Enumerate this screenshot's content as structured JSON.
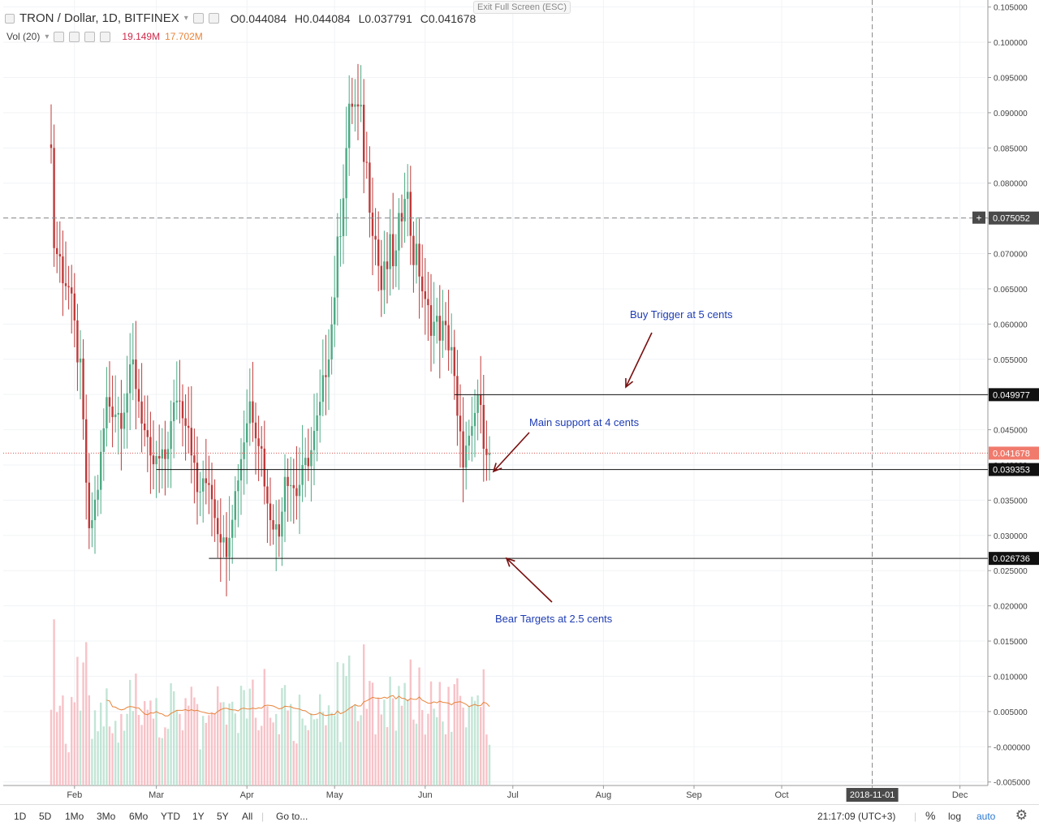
{
  "legend": {
    "symbol": "TRON / Dollar, 1D, BITFINEX",
    "ohlc": [
      {
        "label": "O",
        "value": "0.044084"
      },
      {
        "label": "H",
        "value": "0.044084"
      },
      {
        "label": "L",
        "value": "0.037791"
      },
      {
        "label": "C",
        "value": "0.041678"
      }
    ],
    "volume_label": "Vol (20)",
    "volume_value": "19.149M",
    "volume_ma": "17.702M"
  },
  "exit_fullscreen": "Exit Full Screen (ESC)",
  "toolbar": {
    "ranges": [
      "1D",
      "5D",
      "1Mo",
      "3Mo",
      "6Mo",
      "YTD",
      "1Y",
      "5Y",
      "All"
    ],
    "goto": "Go to...",
    "clock": "21:17:09 (UTC+3)",
    "percent": "%",
    "log": "log",
    "auto": "auto"
  },
  "colors": {
    "up": "#4daa84",
    "down": "#bf3a3a",
    "vol_up": "#b7e0cf",
    "vol_down": "#f6b8be",
    "vol_ma": "#e8843b",
    "annotation_text": "#1e3cb4",
    "arrow": "#7a1010",
    "price_line": "#d9534f"
  },
  "chart_data": {
    "type": "candlestick",
    "title": "TRON / Dollar, 1D, BITFINEX",
    "y_ticks": [
      "0.105000",
      "0.100000",
      "0.095000",
      "0.090000",
      "0.085000",
      "0.080000",
      "0.075000",
      "0.070000",
      "0.065000",
      "0.060000",
      "0.055000",
      "0.050000",
      "0.045000",
      "0.040000",
      "0.035000",
      "0.030000",
      "0.025000",
      "0.020000",
      "0.015000",
      "0.010000",
      "0.005000",
      "-0.000000",
      "-0.005000"
    ],
    "x_ticks": [
      "Feb",
      "Mar",
      "Apr",
      "May",
      "Jun",
      "Jul",
      "Aug",
      "Sep",
      "Oct",
      "2018-11-01",
      "Dec"
    ],
    "ylim": [
      -0.0055,
      0.106
    ],
    "start_date": "2018-01-24",
    "end_date": "2018-06-23",
    "anchors": [
      {
        "date": "2018-01-24",
        "price": 0.085
      },
      {
        "date": "2018-01-25",
        "price": 0.0715
      },
      {
        "date": "2018-01-30",
        "price": 0.065
      },
      {
        "date": "2018-02-03",
        "price": 0.053
      },
      {
        "date": "2018-02-06",
        "price": 0.03
      },
      {
        "date": "2018-02-09",
        "price": 0.037
      },
      {
        "date": "2018-02-12",
        "price": 0.049
      },
      {
        "date": "2018-02-17",
        "price": 0.047
      },
      {
        "date": "2018-02-21",
        "price": 0.054
      },
      {
        "date": "2018-02-27",
        "price": 0.04
      },
      {
        "date": "2018-03-04",
        "price": 0.041
      },
      {
        "date": "2018-03-08",
        "price": 0.05
      },
      {
        "date": "2018-03-12",
        "price": 0.046
      },
      {
        "date": "2018-03-15",
        "price": 0.036
      },
      {
        "date": "2018-03-19",
        "price": 0.038
      },
      {
        "date": "2018-03-22",
        "price": 0.031
      },
      {
        "date": "2018-03-25",
        "price": 0.028
      },
      {
        "date": "2018-03-28",
        "price": 0.036
      },
      {
        "date": "2018-04-02",
        "price": 0.049
      },
      {
        "date": "2018-04-06",
        "price": 0.042
      },
      {
        "date": "2018-04-08",
        "price": 0.034
      },
      {
        "date": "2018-04-12",
        "price": 0.03
      },
      {
        "date": "2018-04-14",
        "price": 0.039
      },
      {
        "date": "2018-04-18",
        "price": 0.036
      },
      {
        "date": "2018-04-21",
        "price": 0.04
      },
      {
        "date": "2018-04-23",
        "price": 0.042
      },
      {
        "date": "2018-04-26",
        "price": 0.048
      },
      {
        "date": "2018-04-30",
        "price": 0.06
      },
      {
        "date": "2018-05-03",
        "price": 0.075
      },
      {
        "date": "2018-05-05",
        "price": 0.085
      },
      {
        "date": "2018-05-07",
        "price": 0.092
      },
      {
        "date": "2018-05-10",
        "price": 0.088
      },
      {
        "date": "2018-05-12",
        "price": 0.082
      },
      {
        "date": "2018-05-15",
        "price": 0.072
      },
      {
        "date": "2018-05-17",
        "price": 0.065
      },
      {
        "date": "2018-05-20",
        "price": 0.07
      },
      {
        "date": "2018-05-22",
        "price": 0.069
      },
      {
        "date": "2018-05-25",
        "price": 0.081
      },
      {
        "date": "2018-05-28",
        "price": 0.07
      },
      {
        "date": "2018-05-30",
        "price": 0.068
      },
      {
        "date": "2018-06-01",
        "price": 0.062
      },
      {
        "date": "2018-06-04",
        "price": 0.06
      },
      {
        "date": "2018-06-07",
        "price": 0.059
      },
      {
        "date": "2018-06-10",
        "price": 0.057
      },
      {
        "date": "2018-06-12",
        "price": 0.046
      },
      {
        "date": "2018-06-14",
        "price": 0.041
      },
      {
        "date": "2018-06-17",
        "price": 0.044
      },
      {
        "date": "2018-06-19",
        "price": 0.05
      },
      {
        "date": "2018-06-21",
        "price": 0.044
      },
      {
        "date": "2018-06-23",
        "price": 0.0417
      }
    ],
    "volume_ma_label": "Vol (20)",
    "levels": [
      {
        "value": 0.075052,
        "label": "0.075052",
        "style": "dashed"
      },
      {
        "value": 0.049977,
        "label": "0.049977",
        "style": "solid"
      },
      {
        "value": 0.041678,
        "label": "0.041678",
        "style": "price"
      },
      {
        "value": 0.039353,
        "label": "0.039353",
        "style": "solid"
      },
      {
        "value": 0.026736,
        "label": "0.026736",
        "style": "solid"
      }
    ],
    "vertical_marker": "2018-11-01",
    "annotations": [
      {
        "text": "Buy Trigger at 5 cents"
      },
      {
        "text": "Main support at 4 cents"
      },
      {
        "text": "Bear Targets at 2.5 cents"
      }
    ],
    "grid": true
  }
}
